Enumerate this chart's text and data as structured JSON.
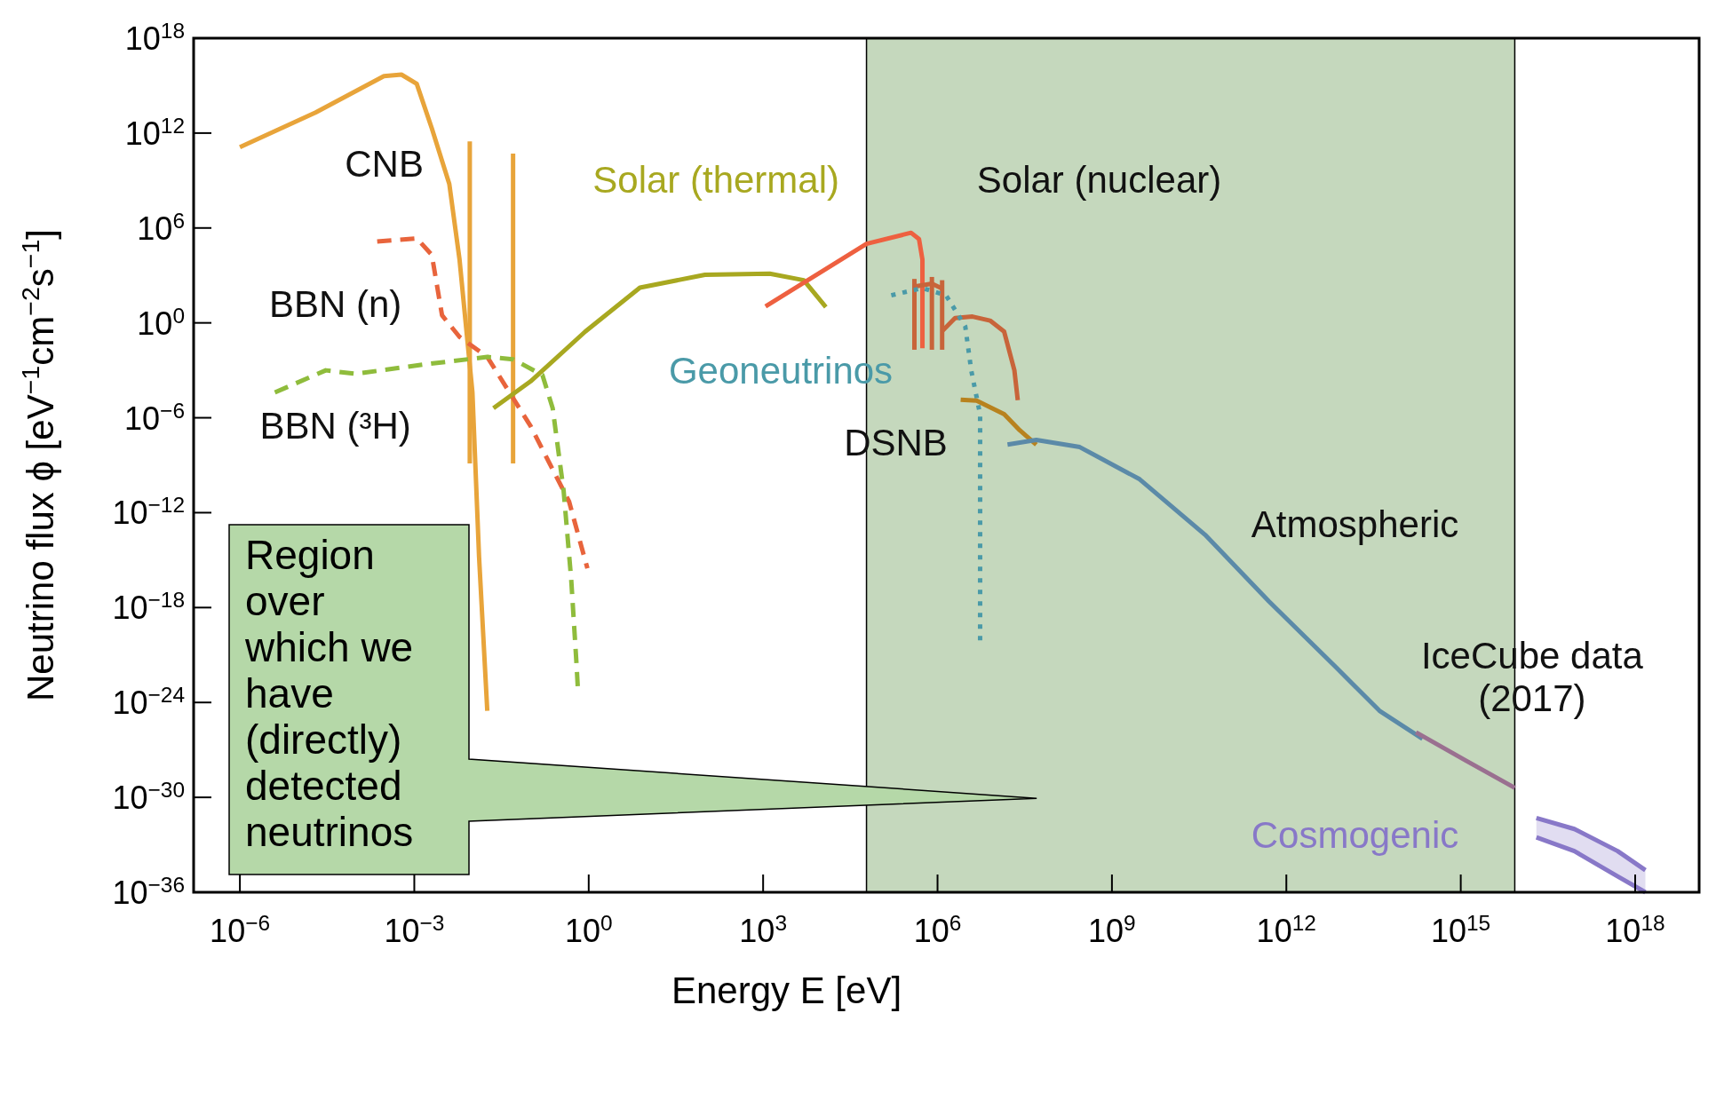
{
  "chart_data": {
    "type": "line",
    "log": "xy",
    "xlabel": "Energy E [eV]",
    "ylabel": "Neutrino flux ϕ [eV$^{−1}$cm$^{−2}$s$^{−1}$]",
    "xlim": [
      1.6e-07,
      1.26e+19
    ],
    "ylim": [
      1e-36,
      1e+18
    ],
    "xticks": [
      {
        "value": 1e-06,
        "label": "10$^{−6}$"
      },
      {
        "value": 0.001,
        "label": "10$^{−3}$"
      },
      {
        "value": 1,
        "label": "10$^{0}$"
      },
      {
        "value": 1000.0,
        "label": "10$^{3}$"
      },
      {
        "value": 1000000.0,
        "label": "10$^{6}$"
      },
      {
        "value": 1000000000.0,
        "label": "10$^{9}$"
      },
      {
        "value": 1000000000000.0,
        "label": "10$^{12}$"
      },
      {
        "value": 1000000000000000.0,
        "label": "10$^{15}$"
      },
      {
        "value": 1e+18,
        "label": "10$^{18}$"
      }
    ],
    "yticks": [
      {
        "value": 1e-36,
        "label": "10$^{−36}$"
      },
      {
        "value": 1e-30,
        "label": "10$^{−30}$"
      },
      {
        "value": 1e-24,
        "label": "10$^{−24}$"
      },
      {
        "value": 1e-18,
        "label": "10$^{−18}$"
      },
      {
        "value": 1e-12,
        "label": "10$^{−12}$"
      },
      {
        "value": 1e-06,
        "label": "10$^{−6}$"
      },
      {
        "value": 1,
        "label": "10$^{0}$"
      },
      {
        "value": 1000000.0,
        "label": "10$^{6}$"
      },
      {
        "value": 1000000000000.0,
        "label": "10$^{12}$"
      },
      {
        "value": 1e+18,
        "label": "10$^{18}$"
      }
    ],
    "bands": [
      {
        "axis": "x",
        "from": 60000.0,
        "to": 8500000000000000.0,
        "color": "#c5d8bd"
      }
    ],
    "series": [
      {
        "name": "CNB",
        "color": "#e8a43a",
        "line_style": "solid",
        "x": [
          1e-06,
          2e-05,
          0.0003,
          0.0006,
          0.0011,
          0.002,
          0.004,
          0.006,
          0.01,
          0.013,
          0.018
        ],
        "values": [
          130000000000.0,
          20000000000000.0,
          4000000000000000.0,
          5000000000000000.0,
          1300000000000000.0,
          2000000000000.0,
          600000000.0,
          10000.0,
          4e-05,
          1.6e-15,
          3e-25
        ]
      },
      {
        "color": "#e8a43a",
        "line_style": "solid",
        "x": [
          0.009,
          0.009
        ],
        "values": [
          300000000000.0,
          1.3e-09
        ]
      },
      {
        "color": "#e8a43a",
        "line_style": "solid",
        "x": [
          0.05,
          0.05
        ],
        "values": [
          50000000000.0,
          1.3e-09
        ]
      },
      {
        "name": "BBN (n)",
        "color": "#e8643c",
        "line_style": "dashed",
        "x": [
          0.00023,
          0.0011,
          0.002,
          0.003,
          0.006,
          0.018,
          0.1,
          0.46,
          0.95
        ],
        "values": [
          140000.0,
          220000.0,
          20000.0,
          3,
          0.13,
          0.007,
          3e-07,
          5e-12,
          3e-16
        ]
      },
      {
        "name": "BBN (³H)",
        "color": "#8fbc3c",
        "line_style": "dashed",
        "x": [
          4e-06,
          3e-05,
          0.0001,
          0.0014,
          0.018,
          0.05,
          0.16,
          0.24,
          0.37,
          0.5,
          0.62,
          0.65
        ],
        "values": [
          4e-05,
          0.001,
          0.0006,
          0.0023,
          0.007,
          0.005,
          0.0005,
          4e-06,
          2.5e-11,
          6e-17,
          2e-22,
          8e-24
        ]
      },
      {
        "name": "Solar (thermal)",
        "color": "#a8a820",
        "line_style": "solid",
        "x": [
          0.023,
          0.1,
          0.87,
          7.6,
          100,
          1300,
          5000,
          12000.0
        ],
        "values": [
          4e-06,
          0.0002,
          0.28,
          170,
          1100,
          1300,
          500,
          10
        ]
      },
      {
        "name": "Solar (nuclear)",
        "color": "#ee6040",
        "line_style": "solid",
        "x": [
          1100.0,
          60000.0,
          350000.0,
          480000.0,
          550000.0,
          550000.0
        ],
        "values": [
          11,
          100000.0,
          500000.0,
          200000.0,
          10000.0,
          0.025
        ]
      },
      {
        "color": "#c8643a",
        "line_style": "solid",
        "x": [
          400000.0,
          400000.0
        ],
        "values": [
          600,
          0.02
        ]
      },
      {
        "color": "#c8643a",
        "line_style": "solid",
        "x": [
          800000.0,
          800000.0
        ],
        "values": [
          800,
          0.02
        ]
      },
      {
        "color": "#c8643a",
        "line_style": "solid",
        "x": [
          1200000.0,
          1200000.0
        ],
        "values": [
          500,
          0.02
        ]
      },
      {
        "color": "#c8643a",
        "line_style": "solid",
        "x": [
          400000.0,
          800000.0,
          1200000.0
        ],
        "values": [
          200,
          300,
          150
        ]
      },
      {
        "color": "#c8643a",
        "line_style": "solid",
        "x": [
          1200000.0,
          2000000.0,
          4000000.0,
          8000000.0,
          14000000.0,
          21000000.0,
          24000000.0
        ],
        "values": [
          0.3,
          2,
          2.5,
          1.4,
          0.28,
          0.001,
          1.3e-05
        ]
      },
      {
        "name": "Geoneutrinos",
        "color": "#4a9aa8",
        "line_style": "dotted",
        "x": [
          160000.0,
          550000.0,
          1400000.0,
          3000000.0,
          3800000.0,
          5400000.0,
          5400000.0
        ],
        "values": [
          55,
          160,
          55,
          0.6,
          0.001,
          1.6e-06,
          4e-21
        ]
      },
      {
        "name": "DSNB",
        "color": "#b8821e",
        "line_style": "solid",
        "x": [
          2500000.0,
          4700000.0,
          14000000.0,
          26000000.0,
          50000000.0
        ],
        "values": [
          1.4e-05,
          1.2e-05,
          1.7e-06,
          1.6e-07,
          2e-08
        ]
      },
      {
        "name": "Atmospheric",
        "color": "#5b8aa8",
        "line_style": "solid",
        "x": [
          16000000.0,
          50000000.0,
          280000000.0,
          3000000000.0,
          40000000000.0,
          500000000000.0,
          7000000000000.0,
          40000000000000.0,
          220000000000000.0
        ],
        "values": [
          2e-08,
          4e-08,
          1.4e-08,
          1.3e-10,
          4e-14,
          2.5e-18,
          1.8e-22,
          3e-25,
          5e-27
        ]
      },
      {
        "name": "IceCube data\n(2017)",
        "color": "#9a7090",
        "line_style": "solid",
        "x": [
          170000000000000.0,
          1200000000000000.0,
          8500000000000000.0
        ],
        "values": [
          1.3e-26,
          2.2e-28,
          4e-30
        ]
      },
      {
        "name": "Cosmogenic",
        "color": "#8878c8",
        "line_style": "solid",
        "x": [
          2e+16,
          9e+16,
          5e+17,
          1.5e+18
        ],
        "values": [
          5e-32,
          1e-32,
          4e-34,
          2.5e-35
        ],
        "lower": [
          3e-33,
          4e-34,
          1e-35,
          1e-36
        ],
        "upper": [
          5e-32,
          1e-32,
          4e-34,
          2.5e-35
        ]
      },
      {
        "color": "#8878c8",
        "line_style": "solid",
        "x": [
          2e+16,
          9e+16,
          5e+17,
          1.5e+18
        ],
        "values": [
          3e-33,
          4e-34,
          1e-35,
          1e-36
        ]
      }
    ],
    "annotations": [
      "Region over which we have (directly) detected neutrinos"
    ]
  }
}
